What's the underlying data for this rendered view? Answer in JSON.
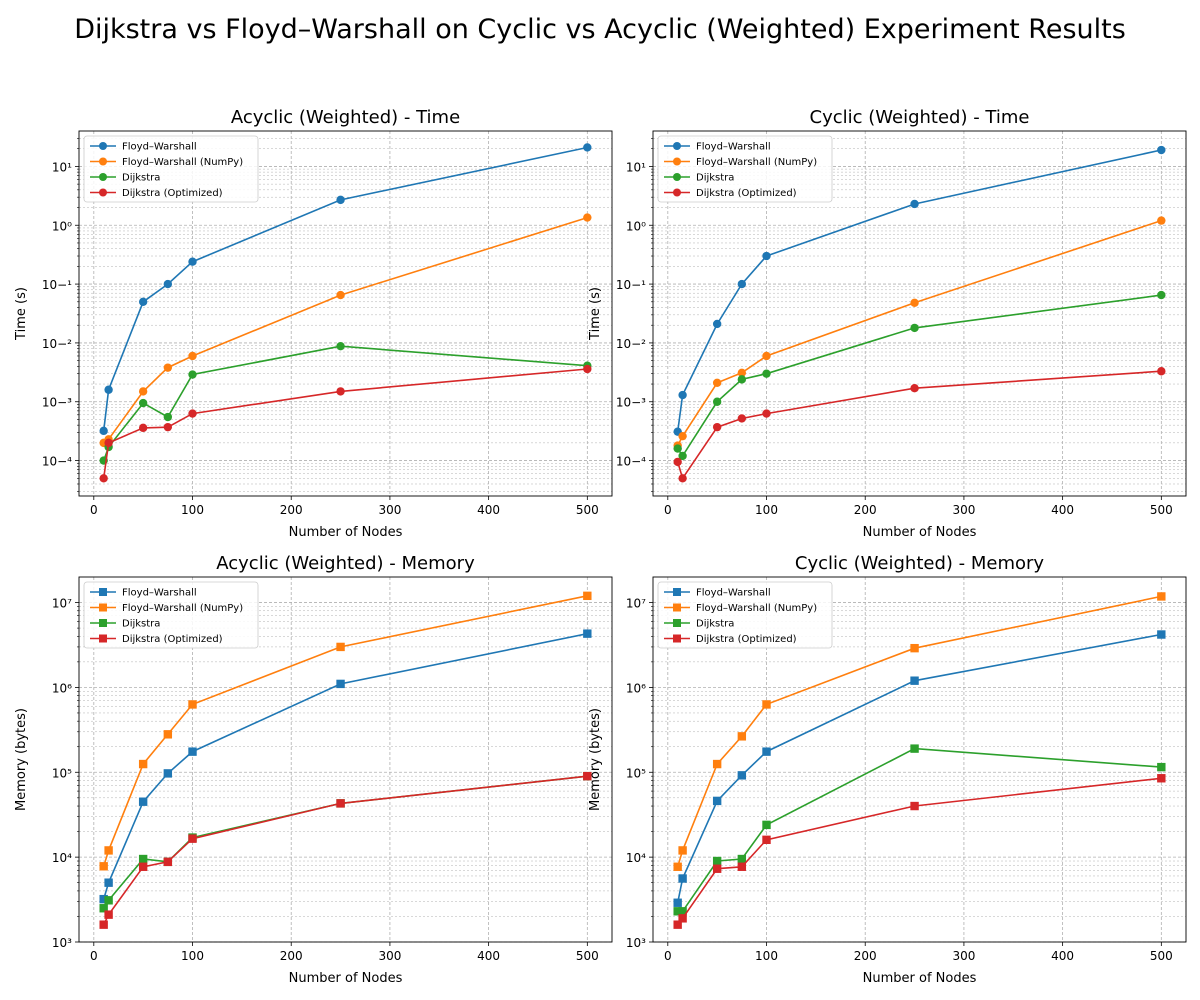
{
  "suptitle": "Dijkstra vs Floyd–Warshall on Cyclic vs Acyclic (Weighted) Experiment Results",
  "colors": {
    "Floyd–Warshall": "#1f77b4",
    "Floyd–Warshall (NumPy)": "#ff7f0e",
    "Dijkstra": "#2ca02c",
    "Dijkstra (Optimized)": "#d62728"
  },
  "chart_data": [
    {
      "type": "line",
      "title": "Acyclic (Weighted) - Time",
      "xlabel": "Number of Nodes",
      "ylabel": "Time (s)",
      "yscale": "log",
      "marker": "circle",
      "xlim": [
        -15,
        525
      ],
      "ylim": [
        2.5e-05,
        40
      ],
      "xticks": [
        0,
        100,
        200,
        300,
        400,
        500
      ],
      "yticks": [
        -4,
        -3,
        -2,
        -1,
        0,
        1
      ],
      "grid": "both",
      "legend": "upper left",
      "x": [
        10,
        15,
        50,
        75,
        100,
        250,
        500
      ],
      "series": [
        {
          "name": "Floyd–Warshall",
          "values": [
            0.00032,
            0.0016,
            0.05,
            0.1,
            0.24,
            2.7,
            21
          ]
        },
        {
          "name": "Floyd–Warshall (NumPy)",
          "values": [
            0.0002,
            0.00023,
            0.0015,
            0.0038,
            0.006,
            0.065,
            1.35
          ]
        },
        {
          "name": "Dijkstra",
          "values": [
            0.0001,
            0.00017,
            0.00095,
            0.00055,
            0.0029,
            0.0088,
            0.0041
          ]
        },
        {
          "name": "Dijkstra (Optimized)",
          "values": [
            5e-05,
            0.0002,
            0.00036,
            0.00037,
            0.00063,
            0.0015,
            0.0036
          ]
        }
      ]
    },
    {
      "type": "line",
      "title": "Cyclic (Weighted) - Time",
      "xlabel": "Number of Nodes",
      "ylabel": "Time (s)",
      "yscale": "log",
      "marker": "circle",
      "xlim": [
        -15,
        525
      ],
      "ylim": [
        2.5e-05,
        40
      ],
      "xticks": [
        0,
        100,
        200,
        300,
        400,
        500
      ],
      "yticks": [
        -4,
        -3,
        -2,
        -1,
        0,
        1
      ],
      "grid": "both",
      "legend": "upper left",
      "x": [
        10,
        15,
        50,
        75,
        100,
        250,
        500
      ],
      "series": [
        {
          "name": "Floyd–Warshall",
          "values": [
            0.00031,
            0.0013,
            0.021,
            0.1,
            0.3,
            2.3,
            19
          ]
        },
        {
          "name": "Floyd–Warshall (NumPy)",
          "values": [
            0.00018,
            0.00026,
            0.0021,
            0.0031,
            0.006,
            0.048,
            1.2
          ]
        },
        {
          "name": "Dijkstra",
          "values": [
            0.00016,
            0.00012,
            0.001,
            0.0024,
            0.003,
            0.018,
            0.065
          ]
        },
        {
          "name": "Dijkstra (Optimized)",
          "values": [
            9.5e-05,
            5e-05,
            0.00037,
            0.00052,
            0.00063,
            0.0017,
            0.0033
          ]
        }
      ]
    },
    {
      "type": "line",
      "title": "Acyclic (Weighted) - Memory",
      "xlabel": "Number of Nodes",
      "ylabel": "Memory (bytes)",
      "yscale": "log",
      "marker": "square",
      "xlim": [
        -15,
        525
      ],
      "ylim": [
        1000,
        20000000
      ],
      "xticks": [
        0,
        100,
        200,
        300,
        400,
        500
      ],
      "yticks": [
        3,
        4,
        5,
        6,
        7
      ],
      "grid": "both",
      "legend": "upper left",
      "x": [
        10,
        15,
        50,
        75,
        100,
        250,
        500
      ],
      "series": [
        {
          "name": "Floyd–Warshall",
          "values": [
            3200,
            5000,
            45000,
            97000,
            175000,
            1100000,
            4300000
          ]
        },
        {
          "name": "Floyd–Warshall (NumPy)",
          "values": [
            7800,
            12000,
            125000,
            280000,
            630000,
            3000000,
            12000000
          ]
        },
        {
          "name": "Dijkstra",
          "values": [
            2500,
            3100,
            9500,
            8800,
            17000,
            43000,
            90000
          ]
        },
        {
          "name": "Dijkstra (Optimized)",
          "values": [
            1600,
            2100,
            7700,
            8800,
            16500,
            43000,
            90000
          ]
        }
      ]
    },
    {
      "type": "line",
      "title": "Cyclic (Weighted) - Memory",
      "xlabel": "Number of Nodes",
      "ylabel": "Memory (bytes)",
      "yscale": "log",
      "marker": "square",
      "xlim": [
        -15,
        525
      ],
      "ylim": [
        1000,
        20000000
      ],
      "xticks": [
        0,
        100,
        200,
        300,
        400,
        500
      ],
      "yticks": [
        3,
        4,
        5,
        6,
        7
      ],
      "grid": "both",
      "legend": "upper left",
      "x": [
        10,
        15,
        50,
        75,
        100,
        250,
        500
      ],
      "series": [
        {
          "name": "Floyd–Warshall",
          "values": [
            2900,
            5600,
            46000,
            92000,
            175000,
            1200000,
            4200000
          ]
        },
        {
          "name": "Floyd–Warshall (NumPy)",
          "values": [
            7700,
            12000,
            125000,
            265000,
            630000,
            2900000,
            11800000
          ]
        },
        {
          "name": "Dijkstra",
          "values": [
            2300,
            2300,
            9000,
            9500,
            24000,
            190000,
            115000
          ]
        },
        {
          "name": "Dijkstra (Optimized)",
          "values": [
            1600,
            1900,
            7300,
            7700,
            16000,
            40000,
            85000
          ]
        }
      ]
    }
  ]
}
